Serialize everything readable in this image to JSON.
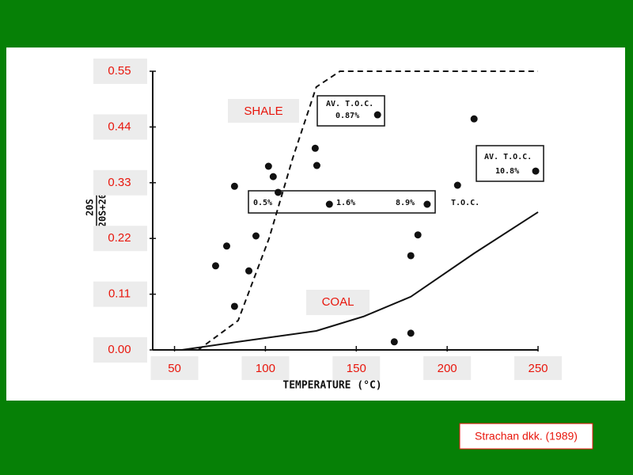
{
  "chart_data": {
    "type": "scatter",
    "x_label": "TEMPERATURE (°C)",
    "y_label_top": "20S",
    "y_label_bottom": "20S+20R",
    "xlim": [
      38,
      250
    ],
    "xticks": [
      50,
      100,
      150,
      200,
      250
    ],
    "ylim": [
      0,
      0.55
    ],
    "yticks": [
      {
        "value": 0,
        "label": "0.00"
      },
      0.11,
      0.22,
      0.33,
      0.44,
      0.55
    ],
    "color": "#111111",
    "points": {
      "x": [
        72.6,
        78.7,
        83,
        83,
        90.9,
        94.8,
        101.7,
        104.3,
        107,
        127.4,
        128.3,
        135.2,
        161.7,
        170.9,
        180,
        180,
        183.9,
        189,
        205.7,
        214.8,
        248.7
      ],
      "y": [
        0.166,
        0.205,
        0.323,
        0.086,
        0.156,
        0.225,
        0.3625,
        0.342,
        0.311,
        0.398,
        0.364,
        0.2875,
        0.464,
        0.016,
        0.033,
        0.186,
        0.227,
        0.2875,
        0.325,
        0.456,
        0.353
      ]
    },
    "curves": [
      {
        "style": "dashed",
        "x": [
          63,
          85,
          102,
          115,
          128,
          141,
          250
        ],
        "y": [
          0,
          0.058,
          0.22,
          0.378,
          0.519,
          0.55,
          0.55
        ]
      },
      {
        "style": "solid",
        "x": [
          54,
          85,
          128,
          154,
          180,
          215,
          250
        ],
        "y": [
          0,
          0.016,
          0.0375,
          0.066,
          0.105,
          0.191,
          0.272
        ]
      }
    ],
    "shale_label": "SHALE",
    "coal_label": "COAL",
    "toc_box_1": [
      "AV. T.O.C.",
      "0.87%"
    ],
    "toc_box_2": [
      "AV. T.O.C.",
      "10.8%"
    ],
    "toc_row": [
      "0.5%",
      "1.6%",
      "8.9%",
      "T.O.C."
    ],
    "citation": "Strachan dkk. (1989)"
  }
}
